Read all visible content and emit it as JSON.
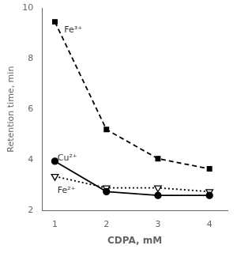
{
  "chart_data": {
    "type": "line",
    "xlabel": "CDPA, mM",
    "ylabel": "Retention time, min",
    "x": [
      1,
      2,
      3,
      4
    ],
    "series": [
      {
        "color": "black",
        "marker": "square",
        "line_style": "dashed",
        "values": [
          9.45,
          5.2,
          4.05,
          3.65
        ]
      },
      {
        "color": "black",
        "marker": "circle",
        "line_style": "solid",
        "values": [
          3.95,
          2.75,
          2.6,
          2.6
        ]
      },
      {
        "color": "black",
        "marker": "triangle_down_open",
        "line_style": "dotted",
        "values": [
          3.35,
          2.9,
          2.9,
          2.75
        ]
      }
    ],
    "annotations": [
      {
        "text": "Fe³⁺",
        "x": 1.18,
        "y": 9.3
      },
      {
        "text": "Cu²⁺",
        "x": 1.05,
        "y": 4.25
      },
      {
        "text": "Fe²⁺",
        "x": 1.05,
        "y": 2.95
      }
    ],
    "xlim": [
      0.75,
      4.35
    ],
    "xticks": [
      1,
      2,
      3,
      4
    ],
    "ylim": [
      2,
      10
    ],
    "yticks": [
      2,
      4,
      6,
      8,
      10
    ],
    "grid": false
  }
}
